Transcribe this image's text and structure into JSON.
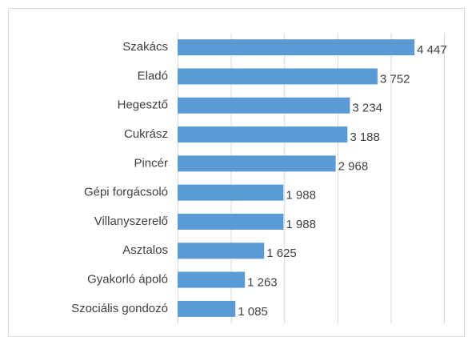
{
  "chart_data": {
    "type": "bar",
    "orientation": "horizontal",
    "categories": [
      "Szakács",
      "Eladó",
      "Hegesztő",
      "Cukrász",
      "Pincér",
      "Gépi forgácsoló",
      "Villanyszerelő",
      "Asztalos",
      "Gyakorló ápoló",
      "Szociális gondozó"
    ],
    "values": [
      4447,
      3752,
      3234,
      3188,
      2968,
      1988,
      1988,
      1625,
      1263,
      1085
    ],
    "value_labels": [
      "4 447",
      "3 752",
      "3 234",
      "3 188",
      "2 968",
      "1 988",
      "1 988",
      "1 625",
      "1 263",
      "1 085"
    ],
    "color": "#5b9bd5",
    "xlim": [
      0,
      5000
    ],
    "xticks": [
      0,
      1000,
      2000,
      3000,
      4000,
      5000
    ],
    "grid": true
  }
}
